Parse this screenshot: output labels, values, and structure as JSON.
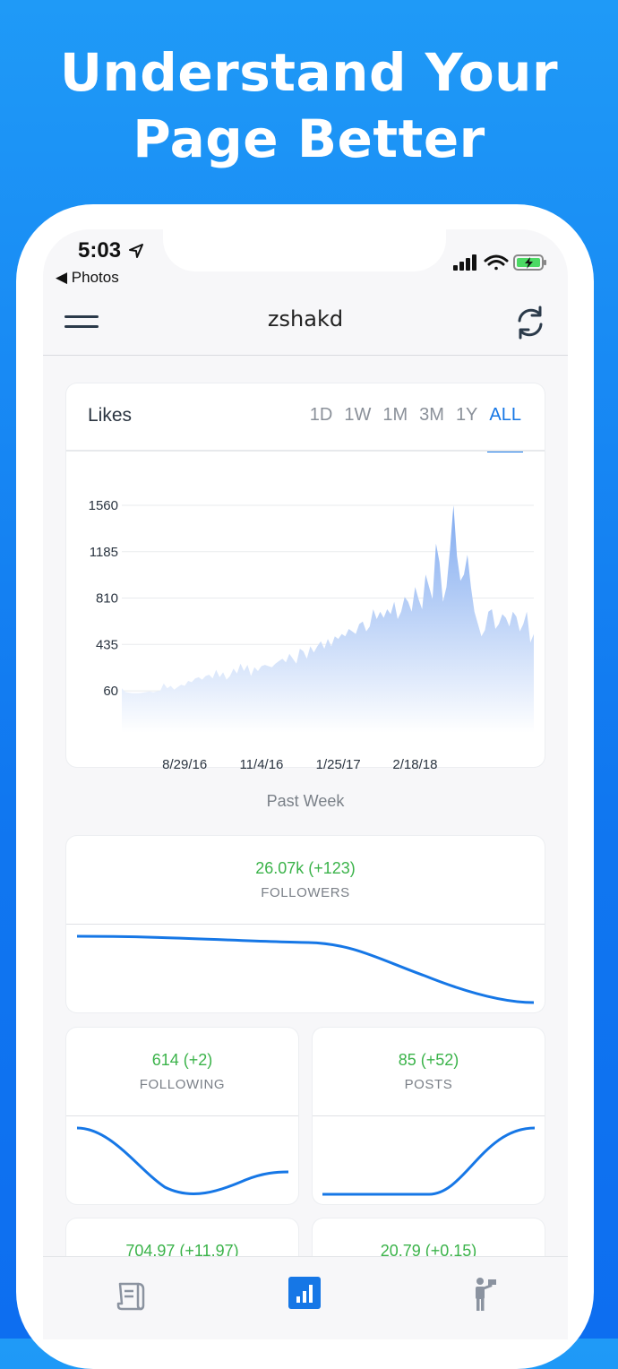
{
  "headline": {
    "line1": "Understand Your",
    "line2": "Page Better"
  },
  "status_bar": {
    "time": "5:03",
    "back_label": "◀ Photos"
  },
  "navbar": {
    "title": "zshakd"
  },
  "chart_card": {
    "title": "Likes",
    "ranges": [
      "1D",
      "1W",
      "1M",
      "3M",
      "1Y",
      "ALL"
    ],
    "active_range": "ALL"
  },
  "chart_data": {
    "type": "area",
    "title": "Likes",
    "yticks": [
      "1560",
      "1185",
      "810",
      "435",
      "60"
    ],
    "yvalues": [
      1560,
      1185,
      810,
      435,
      60
    ],
    "ylim": [
      -280,
      1560
    ],
    "xticks": [
      {
        "label": "8/29/16",
        "index": 18
      },
      {
        "label": "11/4/16",
        "index": 40
      },
      {
        "label": "1/25/17",
        "index": 62
      },
      {
        "label": "2/18/18",
        "index": 84
      }
    ],
    "series": [
      {
        "values": [
          80,
          50,
          45,
          40,
          40,
          42,
          45,
          50,
          55,
          48,
          55,
          60,
          120,
          80,
          100,
          70,
          90,
          110,
          100,
          140,
          130,
          160,
          170,
          150,
          180,
          190,
          160,
          230,
          170,
          210,
          150,
          180,
          240,
          200,
          280,
          220,
          270,
          180,
          250,
          220,
          260,
          270,
          260,
          250,
          280,
          300,
          320,
          290,
          360,
          320,
          280,
          400,
          380,
          320,
          420,
          370,
          420,
          460,
          400,
          480,
          420,
          500,
          480,
          520,
          500,
          560,
          540,
          520,
          600,
          620,
          540,
          580,
          720,
          640,
          700,
          650,
          720,
          680,
          780,
          640,
          700,
          820,
          780,
          700,
          900,
          800,
          720,
          1000,
          900,
          800,
          1250,
          1100,
          780,
          900,
          1200,
          1560,
          1150,
          950,
          1000,
          1160,
          900,
          700,
          600,
          500,
          550,
          700,
          720,
          560,
          600,
          680,
          650,
          580,
          700,
          660,
          540,
          600,
          700,
          450,
          520
        ]
      }
    ],
    "grid": true
  },
  "past_week": {
    "label": "Past Week",
    "followers": {
      "value": "26.07k (+123)",
      "label": "FOLLOWERS"
    },
    "following": {
      "value": "614 (+2)",
      "label": "FOLLOWING"
    },
    "posts": {
      "value": "85 (+52)",
      "label": "POSTS"
    },
    "stat4": {
      "value": "704.97 (+11.97)"
    },
    "stat5": {
      "value": "20.79 (+0.15)"
    }
  },
  "colors": {
    "accent": "#1677e6",
    "positive": "#3bb34a",
    "area_top": "#7aa6ef",
    "background": "#1a8cf4"
  },
  "tabbar": {
    "items": [
      "report-icon",
      "analytics-icon",
      "person-flag-icon"
    ],
    "active": "analytics-icon"
  }
}
